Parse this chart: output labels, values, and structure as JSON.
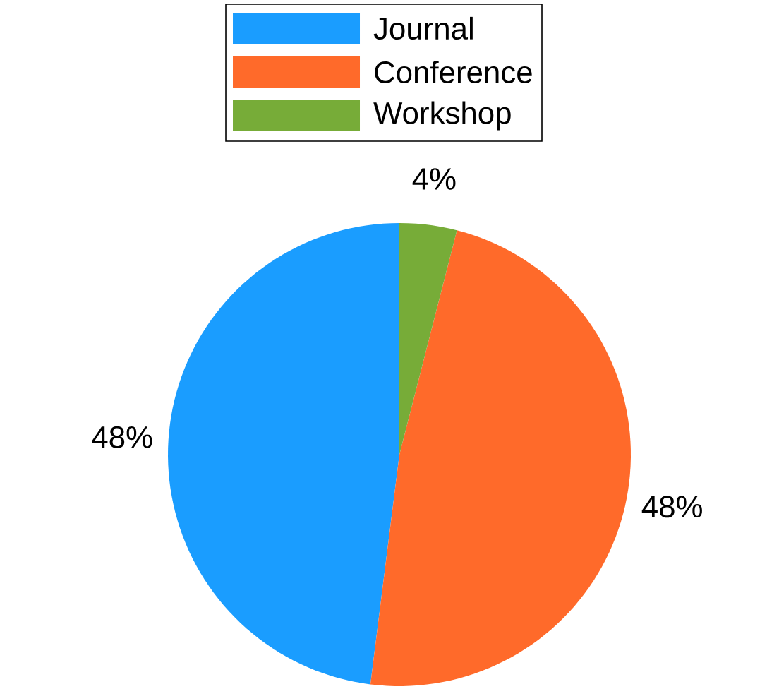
{
  "chart_data": {
    "type": "pie",
    "categories": [
      "Journal",
      "Conference",
      "Workshop"
    ],
    "values": [
      48,
      48,
      4
    ],
    "colors": [
      "#1a9dff",
      "#ff6a2a",
      "#77ac38"
    ],
    "value_labels": [
      "48%",
      "48%",
      "4%"
    ],
    "legend": "top"
  }
}
